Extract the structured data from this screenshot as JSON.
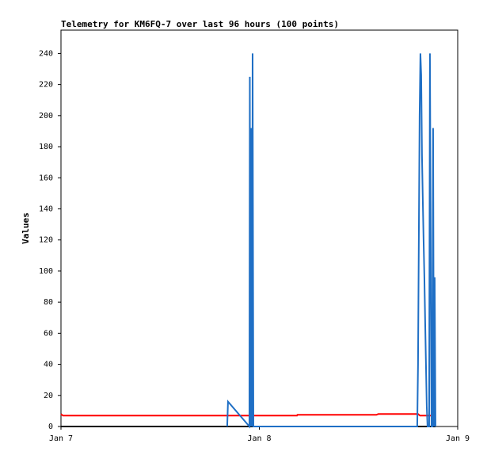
{
  "chart_data": {
    "type": "line",
    "title": "Telemetry for KM6FQ-7 over last 96 hours (100 points)",
    "y_label": "Values",
    "xlim": [
      0,
      2
    ],
    "xticks": [
      {
        "value": 0,
        "label": "Jan 7"
      },
      {
        "value": 1,
        "label": "Jan 8"
      },
      {
        "value": 2,
        "label": "Jan 9"
      }
    ],
    "ylim": [
      0,
      255
    ],
    "yticks": [
      0,
      20,
      40,
      60,
      80,
      100,
      120,
      140,
      160,
      180,
      200,
      220,
      240
    ],
    "grid": false,
    "series": [
      {
        "color": "#000000",
        "x": [
          0,
          1.888
        ],
        "values": [
          0,
          0
        ]
      },
      {
        "color": "#ff0000",
        "x": [
          0,
          0.01,
          1.19,
          1.192,
          1.59,
          1.6,
          1.8,
          1.81,
          1.888
        ],
        "values": [
          8,
          7,
          7,
          7.5,
          7.5,
          8,
          8,
          7,
          7
        ]
      },
      {
        "color": "#1f6fc5",
        "x": [
          0.838,
          0.842,
          0.95,
          0.952,
          0.954,
          0.958,
          0.96,
          0.962,
          0.964,
          0.966,
          0.97,
          1.796,
          1.8,
          1.804,
          1.808,
          1.812,
          1.816,
          1.82,
          1.824,
          1.828,
          1.832,
          1.836,
          1.84,
          1.844,
          1.848,
          1.856,
          1.86,
          1.868,
          1.872,
          1.876,
          1.88,
          1.884,
          1.888
        ],
        "values": [
          0,
          16,
          0,
          225,
          0,
          192,
          0,
          96,
          0,
          240,
          0,
          0,
          40,
          120,
          200,
          240,
          226,
          174,
          146,
          120,
          96,
          67,
          40,
          13,
          0,
          0,
          240,
          0,
          0,
          192,
          0,
          96,
          0
        ]
      }
    ]
  }
}
